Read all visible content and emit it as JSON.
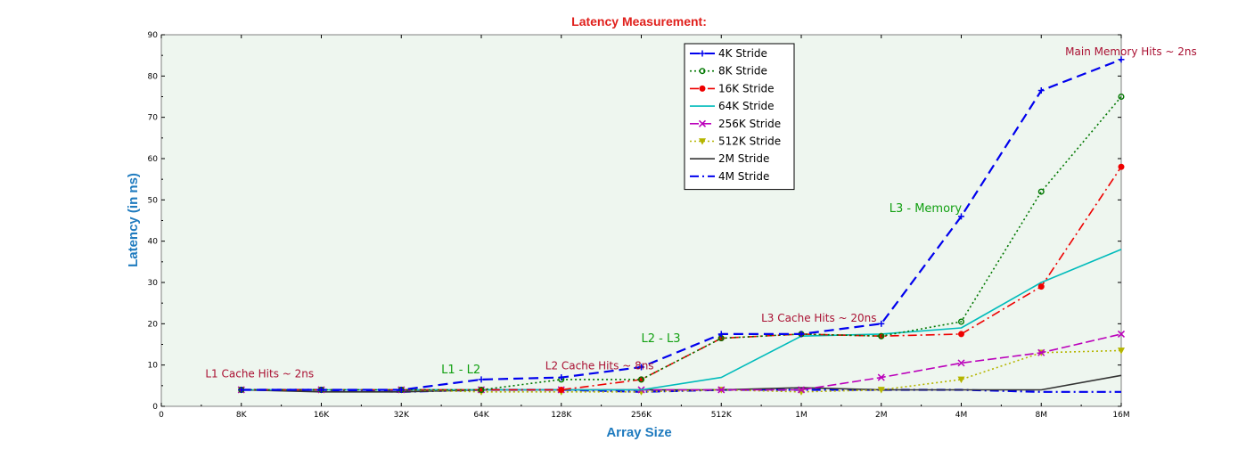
{
  "chart_data": {
    "type": "line",
    "title": "Latency Measurement:",
    "xlabel": "Array Size",
    "ylabel": "Latency (in ns)",
    "x_tick_labels": [
      "0",
      "8K",
      "16K",
      "32K",
      "64K",
      "128K",
      "256K",
      "512K",
      "1M",
      "2M",
      "4M",
      "8M",
      "16M"
    ],
    "y_ticks": [
      0,
      10,
      20,
      30,
      40,
      50,
      60,
      70,
      80,
      90
    ],
    "ylim": [
      0,
      90
    ],
    "grid": false,
    "legend_position": "top-center",
    "categories": [
      "8K",
      "16K",
      "32K",
      "64K",
      "128K",
      "256K",
      "512K",
      "1M",
      "2M",
      "4M",
      "8M",
      "16M"
    ],
    "series": [
      {
        "name": "4K Stride",
        "color": "#0000ee",
        "dash": "11,6",
        "marker": "plus",
        "values": [
          4,
          4,
          4,
          6.5,
          7,
          9.5,
          17.5,
          17.5,
          20,
          46,
          76.5,
          84
        ]
      },
      {
        "name": "8K Stride",
        "color": "#007700",
        "dash": "2,3",
        "marker": "circle",
        "values": [
          4,
          4,
          4,
          4,
          6.5,
          6.5,
          16.5,
          17.5,
          17,
          20.5,
          52,
          75
        ]
      },
      {
        "name": "16K Stride",
        "color": "#ee0000",
        "dash": "10,4,2,4",
        "marker": "dot",
        "values": [
          4,
          4,
          4,
          4,
          4,
          6.5,
          16.5,
          17.5,
          17,
          17.5,
          29,
          58
        ]
      },
      {
        "name": "64K Stride",
        "color": "#00bbbb",
        "dash": "",
        "marker": "none",
        "values": [
          4,
          4,
          4,
          4,
          4,
          4,
          7,
          17,
          17.5,
          19,
          30,
          38
        ]
      },
      {
        "name": "256K Stride",
        "color": "#bb00bb",
        "dash": "10,4",
        "marker": "x",
        "values": [
          4,
          4,
          4,
          4,
          4,
          4,
          4,
          4,
          7,
          10.5,
          13,
          17.5
        ]
      },
      {
        "name": "512K Stride",
        "color": "#b5b500",
        "dash": "2,3",
        "marker": "triangle",
        "values": [
          4,
          4,
          4,
          3.5,
          3.5,
          3.5,
          4,
          3.5,
          4,
          6.5,
          13,
          13.5
        ]
      },
      {
        "name": "2M Stride",
        "color": "#333333",
        "dash": "",
        "marker": "none",
        "values": [
          4,
          3.5,
          3.5,
          4,
          4,
          4,
          4,
          4.5,
          4,
          4,
          4,
          7.5
        ]
      },
      {
        "name": "4M Stride",
        "color": "#0000ee",
        "dash": "10,4,2,4",
        "marker": "none",
        "values": [
          4,
          4,
          3.5,
          4,
          4,
          3.5,
          4,
          4,
          4,
          4,
          3.5,
          3.5
        ]
      }
    ],
    "annotations": [
      {
        "text": "L1 Cache Hits ~ 2ns",
        "color": "#aa1133",
        "x": 0.55,
        "y": 7,
        "size": 12
      },
      {
        "text": "L1 - L2",
        "color": "#11a011",
        "x": 3.5,
        "y": 8,
        "size": 13
      },
      {
        "text": "L2 Cache Hits ~ 8ns",
        "color": "#aa1133",
        "x": 4.8,
        "y": 9,
        "size": 12
      },
      {
        "text": "L2 - L3",
        "color": "#11a011",
        "x": 6.0,
        "y": 15.5,
        "size": 13
      },
      {
        "text": "L3 Cache Hits ~ 20ns",
        "color": "#aa1133",
        "x": 7.5,
        "y": 20.5,
        "size": 12
      },
      {
        "text": "L3 - Memory",
        "color": "#11a011",
        "x": 9.1,
        "y": 47,
        "size": 13
      },
      {
        "text": "Main Memory Hits ~ 2ns",
        "color": "#aa1133",
        "x": 11.3,
        "y": 85,
        "size": 12
      }
    ]
  },
  "colors": {
    "plot_background": "#eef6ef",
    "title": "#e0201c",
    "axis_label": "#1f7bbf"
  }
}
